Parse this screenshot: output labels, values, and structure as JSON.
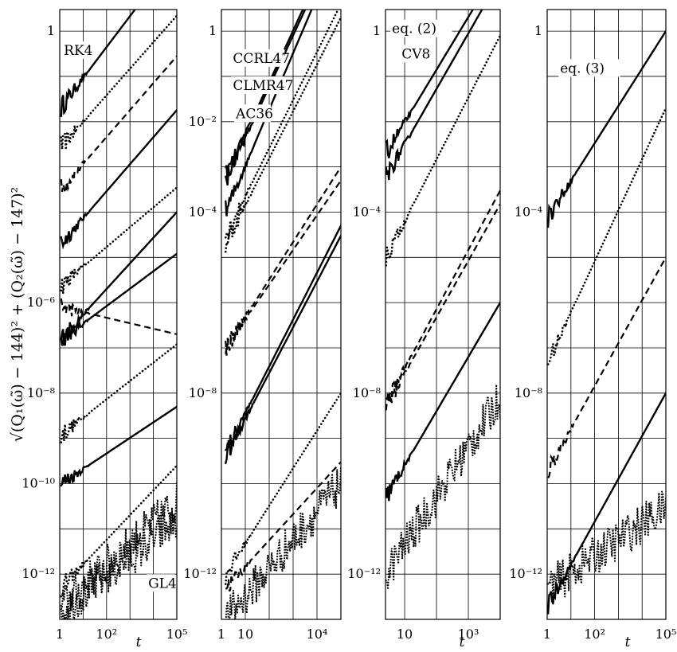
{
  "figure": {
    "ylabel": "√(Q₁(ω̃) − 144)² + (Q₂(ω̃) − 147)²",
    "xlabel": "t"
  },
  "chart_data": [
    {
      "type": "line",
      "panel": "a",
      "yscale": "log",
      "xscale": "log",
      "ylim": [
        1e-13,
        3
      ],
      "xlim": [
        1,
        100000
      ],
      "yticks": [
        {
          "v": 1,
          "label": "1"
        },
        {
          "v": 1e-06,
          "label": "10⁻⁶"
        },
        {
          "v": 1e-08,
          "label": "10⁻⁸"
        },
        {
          "v": 1e-10,
          "label": "10⁻¹⁰"
        },
        {
          "v": 1e-12,
          "label": "10⁻¹²"
        }
      ],
      "xticks": [
        {
          "v": 1,
          "label": "1"
        },
        {
          "v": 100,
          "label": "10²"
        },
        {
          "v": 100000,
          "label": "10⁵"
        }
      ],
      "xlabel": "t",
      "grid": true,
      "annotations": [
        {
          "text": "RK4",
          "x": 1.5,
          "y": 0.3
        },
        {
          "text": "GL4",
          "x": 6000,
          "y": 5e-13
        }
      ],
      "series": [
        {
          "style": "solid",
          "x": [
            1.15,
            100000
          ],
          "y": [
            0.021,
            50
          ]
        },
        {
          "style": "dotted",
          "x": [
            1.15,
            100000
          ],
          "y": [
            0.0028,
            2.2
          ]
        },
        {
          "style": "dashed",
          "x": [
            1.15,
            100000
          ],
          "y": [
            0.00032,
            0.28
          ]
        },
        {
          "style": "solid",
          "x": [
            1.15,
            100000
          ],
          "y": [
            2e-05,
            0.018
          ]
        },
        {
          "style": "dotted",
          "x": [
            1.15,
            100000
          ],
          "y": [
            2.4e-06,
            0.00035
          ]
        },
        {
          "style": "solid",
          "x": [
            1.15,
            100000
          ],
          "y": [
            1.6e-07,
            0.0001
          ]
        },
        {
          "style": "dashed",
          "x": [
            1.15,
            100000
          ],
          "y": [
            8e-07,
            2e-07
          ]
        },
        {
          "style": "solid",
          "x": [
            1.15,
            100000
          ],
          "y": [
            1.5e-07,
            1.2e-05
          ]
        },
        {
          "style": "dotted",
          "x": [
            1.15,
            100000
          ],
          "y": [
            1.2e-09,
            1.2e-07
          ]
        },
        {
          "style": "solid",
          "x": [
            1.15,
            100000
          ],
          "y": [
            1e-10,
            5e-09
          ]
        },
        {
          "style": "dotted",
          "x": [
            1.15,
            100000
          ],
          "y": [
            5e-13,
            2.5e-10
          ]
        },
        {
          "style": "noise",
          "x": [
            1.15,
            100000
          ],
          "y": [
            2e-13,
            4e-11
          ]
        },
        {
          "style": "noise",
          "x": [
            1.15,
            100000
          ],
          "y": [
            1.5e-13,
            1.5e-11
          ]
        }
      ]
    },
    {
      "type": "line",
      "panel": "b",
      "yscale": "log",
      "xscale": "log",
      "ylim": [
        1e-13,
        3
      ],
      "xlim": [
        1,
        100000
      ],
      "yticks": [
        {
          "v": 1,
          "label": "1"
        },
        {
          "v": 0.01,
          "label": "10⁻²"
        },
        {
          "v": 0.0001,
          "label": "10⁻⁴"
        },
        {
          "v": 1e-08,
          "label": "10⁻⁸"
        },
        {
          "v": 1e-12,
          "label": "10⁻¹²"
        }
      ],
      "xticks": [
        {
          "v": 1,
          "label": "1"
        },
        {
          "v": 10,
          "label": "10"
        },
        {
          "v": 10000,
          "label": "10⁴"
        }
      ],
      "xlabel": "",
      "grid": true,
      "annotations": [
        {
          "text": "CCRL47",
          "x": 3,
          "y": 0.2
        },
        {
          "text": "CLMR47",
          "x": 3,
          "y": 0.05
        },
        {
          "text": "AC36",
          "x": 4,
          "y": 0.012
        }
      ],
      "series": [
        {
          "style": "solid",
          "x": [
            1.5,
            100000
          ],
          "y": [
            0.0006,
            200
          ]
        },
        {
          "style": "solid",
          "x": [
            1.5,
            100000
          ],
          "y": [
            0.0005,
            150
          ]
        },
        {
          "style": "solid",
          "x": [
            1.5,
            100000
          ],
          "y": [
            0.0001,
            100
          ]
        },
        {
          "style": "dotted",
          "x": [
            1.5,
            100000
          ],
          "y": [
            3e-05,
            4
          ]
        },
        {
          "style": "dotted",
          "x": [
            1.5,
            100000
          ],
          "y": [
            2e-05,
            2
          ]
        },
        {
          "style": "dashed",
          "x": [
            1.5,
            100000
          ],
          "y": [
            1e-07,
            0.001
          ]
        },
        {
          "style": "dashed",
          "x": [
            1.5,
            100000
          ],
          "y": [
            1e-07,
            0.0005
          ]
        },
        {
          "style": "solid",
          "x": [
            1.5,
            100000
          ],
          "y": [
            5e-10,
            5e-05
          ]
        },
        {
          "style": "solid",
          "x": [
            1.5,
            100000
          ],
          "y": [
            4e-10,
            3e-05
          ]
        },
        {
          "style": "dotted",
          "x": [
            1.5,
            100000
          ],
          "y": [
            1e-12,
            1e-08
          ]
        },
        {
          "style": "dashed",
          "x": [
            1.5,
            100000
          ],
          "y": [
            5e-13,
            3e-10
          ]
        },
        {
          "style": "noise",
          "x": [
            1.5,
            100000
          ],
          "y": [
            1e-13,
            1e-10
          ]
        }
      ]
    },
    {
      "type": "line",
      "panel": "c",
      "yscale": "log",
      "xscale": "log",
      "ylim": [
        1e-13,
        3
      ],
      "xlim": [
        2.5,
        10000
      ],
      "yticks": [
        {
          "v": 1,
          "label": "1"
        },
        {
          "v": 0.0001,
          "label": "10⁻⁴"
        },
        {
          "v": 1e-08,
          "label": "10⁻⁸"
        },
        {
          "v": 1e-12,
          "label": "10⁻¹²"
        }
      ],
      "xticks": [
        {
          "v": 10,
          "label": "10"
        },
        {
          "v": 1000,
          "label": "10³"
        }
      ],
      "xlabel": "t",
      "grid": true,
      "annotations": [
        {
          "text": "eq. (2)",
          "x": 4,
          "y": 0.9
        },
        {
          "text": "CV8",
          "x": 8,
          "y": 0.25
        }
      ],
      "series": [
        {
          "style": "solid",
          "x": [
            2.6,
            10000
          ],
          "y": [
            0.002,
            30
          ]
        },
        {
          "style": "solid",
          "x": [
            2.6,
            10000
          ],
          "y": [
            0.0006,
            15
          ]
        },
        {
          "style": "dotted",
          "x": [
            2.6,
            10000
          ],
          "y": [
            1e-05,
            0.8
          ]
        },
        {
          "style": "dashed",
          "x": [
            2.6,
            10000
          ],
          "y": [
            6e-09,
            0.0003
          ]
        },
        {
          "style": "dashed",
          "x": [
            2.6,
            10000
          ],
          "y": [
            5e-09,
            0.00015
          ]
        },
        {
          "style": "solid",
          "x": [
            2.6,
            10000
          ],
          "y": [
            5e-11,
            1e-06
          ]
        },
        {
          "style": "noise",
          "x": [
            2.6,
            10000
          ],
          "y": [
            1e-12,
            8e-09
          ]
        }
      ]
    },
    {
      "type": "line",
      "panel": "d",
      "yscale": "log",
      "xscale": "log",
      "ylim": [
        1e-13,
        3
      ],
      "xlim": [
        1,
        100000
      ],
      "yticks": [
        {
          "v": 1,
          "label": "1"
        },
        {
          "v": 0.0001,
          "label": "10⁻⁴"
        },
        {
          "v": 1e-08,
          "label": "10⁻⁸"
        },
        {
          "v": 1e-12,
          "label": "10⁻¹²"
        }
      ],
      "xticks": [
        {
          "v": 1,
          "label": "1"
        },
        {
          "v": 100,
          "label": "10²"
        },
        {
          "v": 100000,
          "label": "10⁵"
        }
      ],
      "xlabel": "t",
      "grid": true,
      "annotations": [
        {
          "text": "eq. (3)",
          "x": 3.5,
          "y": 0.12
        }
      ],
      "series": [
        {
          "style": "solid",
          "x": [
            1.1,
            100000
          ],
          "y": [
            8e-05,
            1
          ]
        },
        {
          "style": "dotted",
          "x": [
            1.1,
            100000
          ],
          "y": [
            5e-08,
            0.02
          ]
        },
        {
          "style": "dashed",
          "x": [
            1.1,
            100000
          ],
          "y": [
            2e-10,
            1e-05
          ]
        },
        {
          "style": "solid",
          "x": [
            1.1,
            100000
          ],
          "y": [
            2e-13,
            1e-08
          ]
        },
        {
          "style": "noise",
          "x": [
            1.1,
            100000
          ],
          "y": [
            5e-13,
            3e-11
          ]
        }
      ]
    }
  ]
}
